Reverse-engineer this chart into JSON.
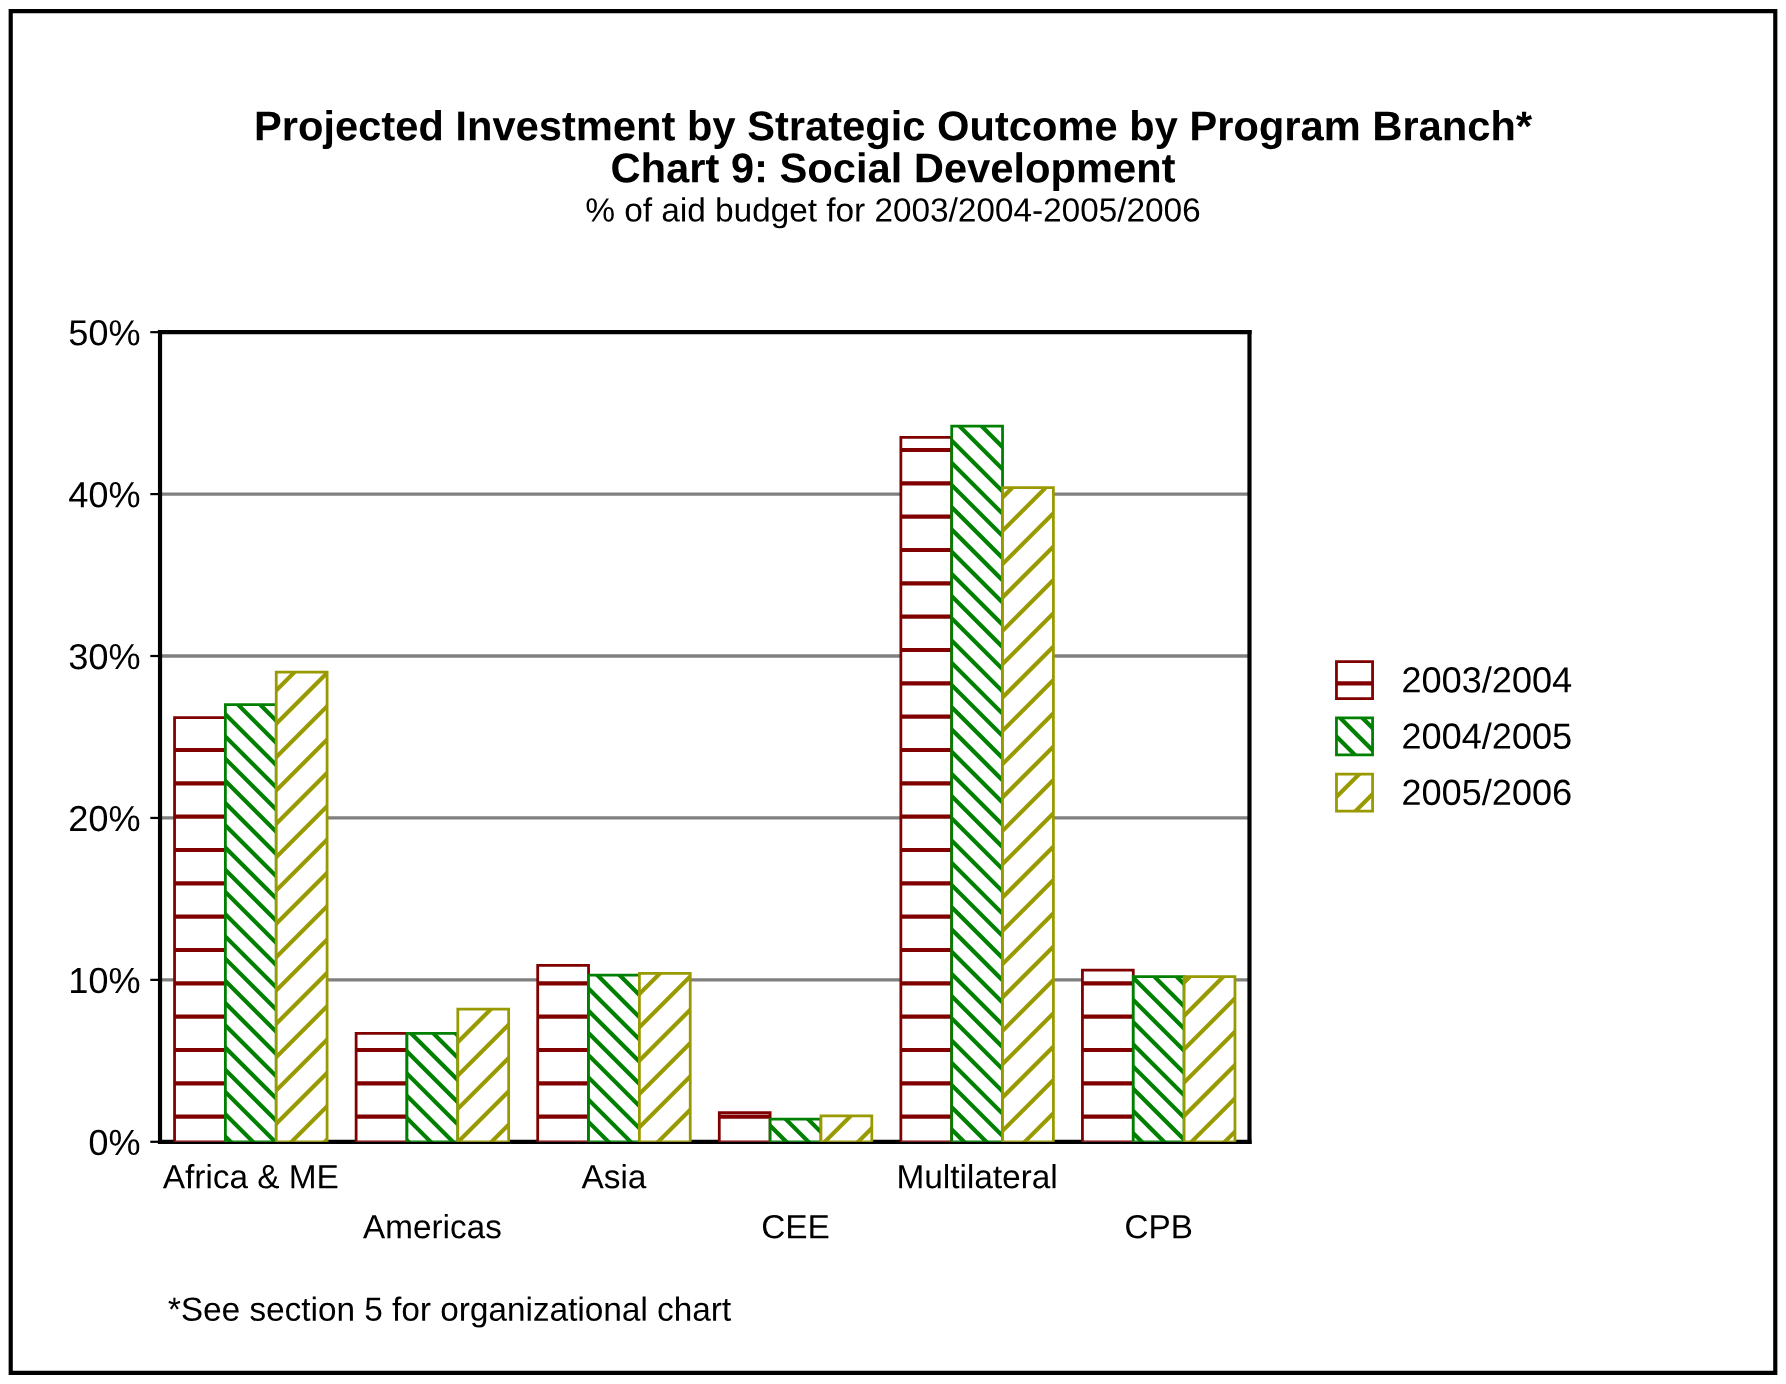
{
  "chart_data": {
    "type": "bar",
    "title": "Projected Investment by Strategic Outcome by Program Branch*\nChart 9: Social Development",
    "subtitle": "% of aid budget for 2003/2004-2005/2006",
    "categories": [
      "Africa & ME",
      "Americas",
      "Asia",
      "CEE",
      "Multilateral",
      "CPB"
    ],
    "series": [
      {
        "name": "2003/2004",
        "color": "#800000",
        "values": [
          26.2,
          6.7,
          10.9,
          1.8,
          43.5,
          10.6
        ]
      },
      {
        "name": "2004/2005",
        "color": "#008000",
        "values": [
          27.0,
          6.7,
          10.3,
          1.4,
          44.2,
          10.2
        ]
      },
      {
        "name": "2005/2006",
        "color": "#999900",
        "values": [
          29.0,
          8.2,
          10.4,
          1.6,
          40.4,
          10.2
        ]
      }
    ],
    "ylim": [
      0,
      50
    ],
    "yticks": [
      {
        "value": 0,
        "label": "0%"
      },
      {
        "value": 10,
        "label": "10%"
      },
      {
        "value": 20,
        "label": "20%"
      },
      {
        "value": 30,
        "label": "30%"
      },
      {
        "value": 40,
        "label": "40%"
      },
      {
        "value": 50,
        "label": "50%"
      }
    ],
    "grid": "y",
    "legend": "right",
    "annotations": [
      "*See section 5 for organizational chart"
    ]
  }
}
